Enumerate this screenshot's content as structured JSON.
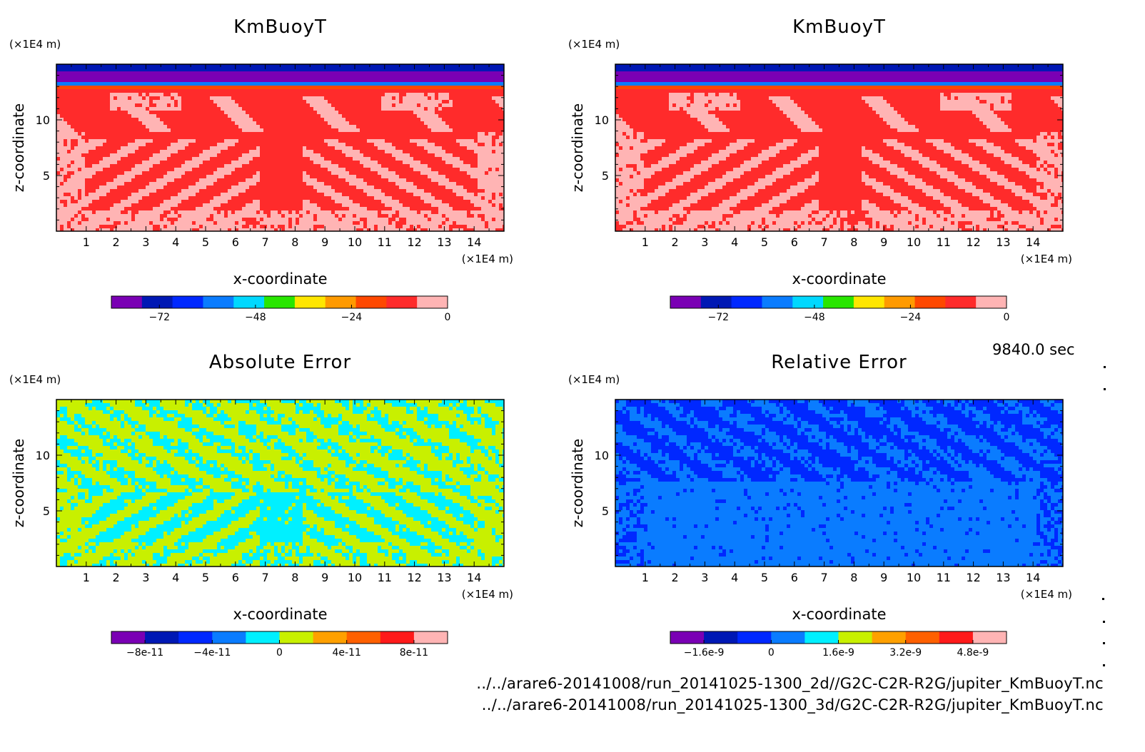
{
  "figure": {
    "time_label": "9840.0 sec",
    "file_lines": [
      "../../arare6-20141008/run_20141025-1300_2d//G2C-C2R-R2G/jupiter_KmBuoyT.nc",
      "../../arare6-20141008/run_20141025-1300_3d/G2C-C2R-R2G/jupiter_KmBuoyT.nc"
    ]
  },
  "chart_data": [
    {
      "type": "heatmap",
      "title": "KmBuoyT",
      "xlabel": "x-coordinate",
      "ylabel": "z-coordinate",
      "x_unit": "(×1E4 m)",
      "y_unit": "(×1E4 m)",
      "xlim": [
        0,
        15
      ],
      "ylim": [
        0,
        15
      ],
      "x_ticks": [
        1,
        2,
        3,
        4,
        5,
        6,
        7,
        8,
        9,
        10,
        11,
        12,
        13,
        14
      ],
      "y_ticks": [
        5,
        10
      ],
      "colorbar_ticks": [
        "-72",
        "-48",
        "-24",
        "0"
      ],
      "colorbar_tick_values": [
        -72,
        -48,
        -24,
        0
      ],
      "colorbar_range": [
        -84,
        0
      ],
      "colorbar_colors": [
        "#7a00b4",
        "#0018b4",
        "#0028ff",
        "#0a7cff",
        "#00d8ff",
        "#28e600",
        "#ffe600",
        "#ff9a00",
        "#ff4800",
        "#ff2b2b",
        "#ffb4b4"
      ],
      "pattern": "background"
    },
    {
      "type": "heatmap",
      "title": "KmBuoyT",
      "xlabel": "x-coordinate",
      "ylabel": "z-coordinate",
      "x_unit": "(×1E4 m)",
      "y_unit": "(×1E4 m)",
      "xlim": [
        0,
        15
      ],
      "ylim": [
        0,
        15
      ],
      "x_ticks": [
        1,
        2,
        3,
        4,
        5,
        6,
        7,
        8,
        9,
        10,
        11,
        12,
        13,
        14
      ],
      "y_ticks": [
        5,
        10
      ],
      "colorbar_ticks": [
        "-72",
        "-48",
        "-24",
        "0"
      ],
      "colorbar_tick_values": [
        -72,
        -48,
        -24,
        0
      ],
      "colorbar_range": [
        -84,
        0
      ],
      "colorbar_colors": [
        "#7a00b4",
        "#0018b4",
        "#0028ff",
        "#0a7cff",
        "#00d8ff",
        "#28e600",
        "#ffe600",
        "#ff9a00",
        "#ff4800",
        "#ff2b2b",
        "#ffb4b4"
      ],
      "pattern": "background"
    },
    {
      "type": "heatmap",
      "title": "Absolute Error",
      "xlabel": "x-coordinate",
      "ylabel": "z-coordinate",
      "x_unit": "(×1E4 m)",
      "y_unit": "(×1E4 m)",
      "xlim": [
        0,
        15
      ],
      "ylim": [
        0,
        15
      ],
      "x_ticks": [
        1,
        2,
        3,
        4,
        5,
        6,
        7,
        8,
        9,
        10,
        11,
        12,
        13,
        14
      ],
      "y_ticks": [
        5,
        10
      ],
      "colorbar_ticks": [
        "-8e-11",
        "-4e-11",
        "0",
        "4e-11",
        "8e-11"
      ],
      "colorbar_tick_values": [
        -8e-11,
        -4e-11,
        0,
        4e-11,
        8e-11
      ],
      "colorbar_range": [
        -1e-10,
        1e-10
      ],
      "colorbar_colors": [
        "#7a00b4",
        "#0018b4",
        "#0028ff",
        "#0a7cff",
        "#00f0ff",
        "#c8f000",
        "#ffa000",
        "#ff6000",
        "#ff1a1a",
        "#ffb4b4"
      ],
      "pattern": "abs"
    },
    {
      "type": "heatmap",
      "title": "Relative Error",
      "xlabel": "x-coordinate",
      "ylabel": "z-coordinate",
      "x_unit": "(×1E4 m)",
      "y_unit": "(×1E4 m)",
      "xlim": [
        0,
        15
      ],
      "ylim": [
        0,
        15
      ],
      "x_ticks": [
        1,
        2,
        3,
        4,
        5,
        6,
        7,
        8,
        9,
        10,
        11,
        12,
        13,
        14
      ],
      "y_ticks": [
        5,
        10
      ],
      "colorbar_ticks": [
        "-1.6e-9",
        "0",
        "1.6e-9",
        "3.2e-9",
        "4.8e-9"
      ],
      "colorbar_tick_values": [
        -1.6e-09,
        0,
        1.6e-09,
        3.2e-09,
        4.8e-09
      ],
      "colorbar_range": [
        -2.4e-09,
        5.6e-09
      ],
      "colorbar_colors": [
        "#7a00b4",
        "#0018b4",
        "#0028ff",
        "#0a7cff",
        "#00f0ff",
        "#c8f000",
        "#ffa000",
        "#ff6000",
        "#ff1a1a",
        "#ffb4b4"
      ],
      "pattern": "rel"
    }
  ]
}
